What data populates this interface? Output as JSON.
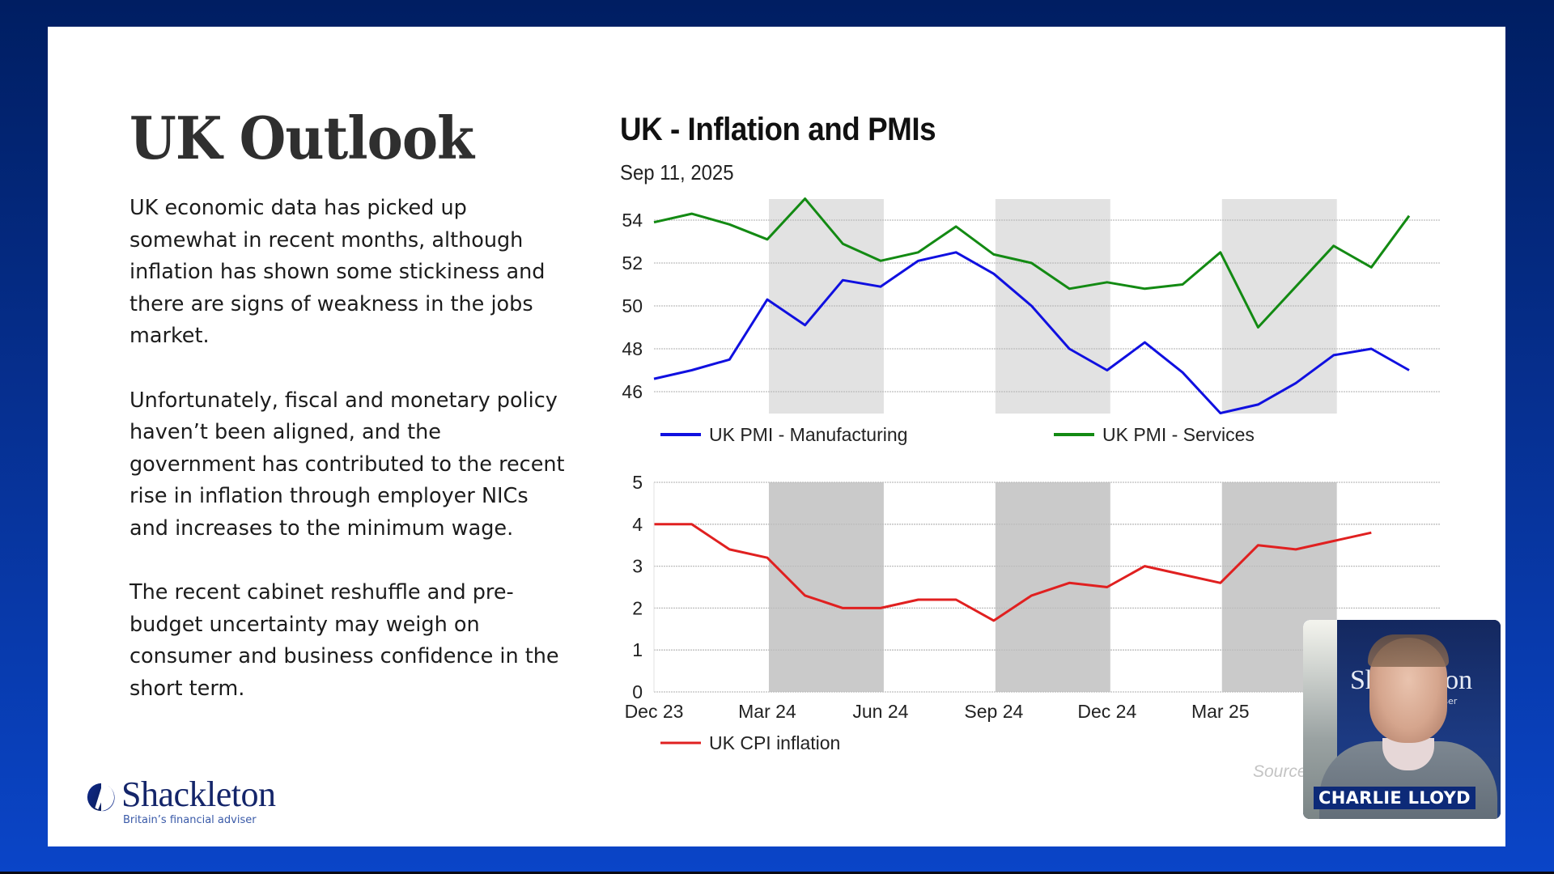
{
  "slide": {
    "title": "UK Outlook",
    "paragraphs": [
      "UK economic data has picked up somewhat in recent months, although inflation has shown some stickiness and there are signs of weakness in the jobs market.",
      "Unfortunately, fiscal and monetary policy haven’t been aligned, and the government has contributed to the recent rise in inflation through employer NICs and increases to the minimum wage.",
      "The recent cabinet reshuffle and pre-budget uncertainty may weigh on consumer and business confidence in the short term."
    ],
    "logo": {
      "name": "Shackleton",
      "tagline": "Britain’s financial adviser",
      "color": "#14256a"
    }
  },
  "webcam": {
    "presenter_name": "CHARLIE LLOYD",
    "backdrop_text": "Shackleton",
    "backdrop_sub": "adviser"
  },
  "chart_data": [
    {
      "type": "line",
      "title": "UK - Inflation and PMIs",
      "subtitle": "Sep 11, 2025",
      "x": [
        "Dec 23",
        "Jan 24",
        "Feb 24",
        "Mar 24",
        "Apr 24",
        "May 24",
        "Jun 24",
        "Jul 24",
        "Aug 24",
        "Sep 24",
        "Oct 24",
        "Nov 24",
        "Dec 24",
        "Jan 25",
        "Feb 25",
        "Mar 25",
        "Apr 25",
        "May 25",
        "Jun 25",
        "Jul 25",
        "Aug 25"
      ],
      "series": [
        {
          "name": "UK PMI - Manufacturing",
          "color": "#1010e0",
          "values": [
            46.6,
            47.0,
            47.5,
            50.3,
            49.1,
            51.2,
            50.9,
            52.1,
            52.5,
            51.5,
            50.0,
            48.0,
            47.0,
            48.3,
            46.9,
            45.0,
            45.4,
            46.4,
            47.7,
            48.0,
            47.0
          ]
        },
        {
          "name": "UK PMI - Services",
          "color": "#138a13",
          "values": [
            53.9,
            54.3,
            53.8,
            53.1,
            55.0,
            52.9,
            52.1,
            52.5,
            53.7,
            52.4,
            52.0,
            50.8,
            51.1,
            50.8,
            51.0,
            52.5,
            49.0,
            50.9,
            52.8,
            51.8,
            54.2
          ]
        }
      ],
      "yticks": [
        46,
        48,
        50,
        52,
        54
      ],
      "ylim": [
        45,
        55
      ],
      "grid": true,
      "shaded_ranges": [
        [
          "Mar 24",
          "Jun 24"
        ],
        [
          "Sep 24",
          "Dec 24"
        ],
        [
          "Mar 25",
          "Jun 25"
        ]
      ],
      "shade_color": "#e2e2e2",
      "legend": "bottom"
    },
    {
      "type": "line",
      "x": [
        "Dec 23",
        "Jan 24",
        "Feb 24",
        "Mar 24",
        "Apr 24",
        "May 24",
        "Jun 24",
        "Jul 24",
        "Aug 24",
        "Sep 24",
        "Oct 24",
        "Nov 24",
        "Dec 24",
        "Jan 25",
        "Feb 25",
        "Mar 25",
        "Apr 25",
        "May 25",
        "Jun 25",
        "Jul 25",
        "Aug 25"
      ],
      "xtick_labels": [
        "Dec 23",
        "Mar 24",
        "Jun 24",
        "Sep 24",
        "Dec 24",
        "Mar 25"
      ],
      "series": [
        {
          "name": "UK CPI inflation",
          "color": "#e02020",
          "values": [
            4.0,
            4.0,
            3.4,
            3.2,
            2.3,
            2.0,
            2.0,
            2.2,
            2.2,
            1.7,
            2.3,
            2.6,
            2.5,
            3.0,
            2.8,
            2.6,
            3.5,
            3.4,
            3.6,
            3.8
          ]
        }
      ],
      "yticks": [
        0,
        1,
        2,
        3,
        4,
        5
      ],
      "ylim": [
        0,
        5
      ],
      "grid": true,
      "shaded_ranges": [
        [
          "Mar 24",
          "Jun 24"
        ],
        [
          "Sep 24",
          "Dec 24"
        ],
        [
          "Mar 25",
          "Jun 25"
        ]
      ],
      "shade_color": "#cacaca",
      "legend": "bottom-left",
      "source_label": "Source"
    }
  ]
}
